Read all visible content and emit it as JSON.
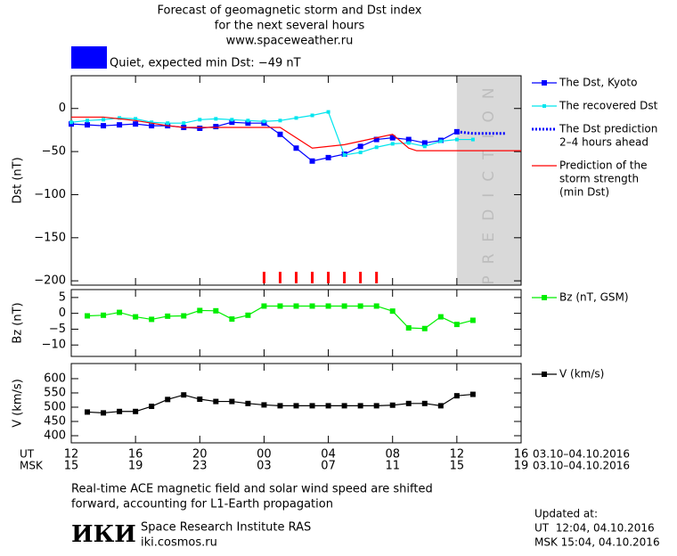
{
  "header": {
    "title_lines": [
      "Forecast of geomagnetic storm and Dst index",
      "for the next several hours",
      "www.spaceweather.ru"
    ],
    "status_color": "#0000ff",
    "status_text": "Quiet, expected min Dst: −49 nT"
  },
  "x_axis": {
    "xlim": [
      0,
      28
    ],
    "xticks": [
      {
        "value": 0,
        "label": "12"
      },
      {
        "value": 4,
        "label": "16"
      },
      {
        "value": 8,
        "label": "20"
      },
      {
        "value": 12,
        "label": "00"
      },
      {
        "value": 16,
        "label": "04"
      },
      {
        "value": 20,
        "label": "08"
      },
      {
        "value": 24,
        "label": "12"
      },
      {
        "value": 28,
        "label": "16"
      }
    ],
    "msk_tick_labels": [
      "15",
      "19",
      "23",
      "03",
      "07",
      "11",
      "15",
      "19"
    ],
    "ut_label": "UT",
    "msk_label": "MSK",
    "ut_dates": "03.10–04.10.2016",
    "msk_dates": "03.10–04.10.2016"
  },
  "chart_data": [
    {
      "type": "line",
      "ylabel": "Dst (nT)",
      "ylim": [
        -205,
        38
      ],
      "yticks": [
        0,
        {
          "value": -50,
          "label": "−50"
        },
        {
          "value": -100,
          "label": "−100"
        },
        {
          "value": -150,
          "label": "−150"
        },
        {
          "value": -200,
          "label": "−200"
        }
      ],
      "prediction_region": {
        "x": [
          24,
          28
        ],
        "color": "#d9d9d9",
        "label": "PREDICTION"
      },
      "storm_markers": {
        "color": "#ff0000",
        "x": [
          12,
          13,
          14,
          15,
          16,
          17,
          18,
          19
        ]
      },
      "series": [
        {
          "name": [
            "The Dst, Kyoto"
          ],
          "color": "#0000ff",
          "style": "line-markers",
          "x": [
            0,
            1,
            2,
            3,
            4,
            5,
            6,
            7,
            8,
            9,
            10,
            11,
            12,
            13,
            14,
            15,
            16,
            17,
            18,
            19,
            20,
            21,
            22,
            23,
            24
          ],
          "values": [
            -18,
            -19,
            -20,
            -19,
            -18,
            -20,
            -20,
            -22,
            -23,
            -21,
            -16,
            -17,
            -17,
            -30,
            -46,
            -61,
            -57,
            -53,
            -44,
            -36,
            -34,
            -36,
            -40,
            -37,
            -27
          ]
        },
        {
          "name": [
            "The recovered Dst"
          ],
          "color": "#00e5ee",
          "style": "line-small-markers",
          "x": [
            0,
            1,
            2,
            3,
            4,
            5,
            6,
            7,
            8,
            9,
            10,
            11,
            12,
            13,
            14,
            15,
            16,
            17,
            18,
            19,
            20,
            21,
            22,
            23,
            24,
            25
          ],
          "values": [
            -16,
            -14,
            -13,
            -11,
            -12,
            -16,
            -17,
            -17,
            -13,
            -12,
            -13,
            -14,
            -15,
            -14,
            -11,
            -8,
            -4,
            -54,
            -51,
            -45,
            -41,
            -40,
            -44,
            -38,
            -36,
            -36
          ]
        },
        {
          "name": [
            "The Dst prediction",
            "2–4 hours ahead"
          ],
          "color": "#0000ff",
          "style": "dotted",
          "x": [
            24,
            25,
            26,
            27
          ],
          "values": [
            -27,
            -29,
            -29,
            -29
          ]
        },
        {
          "name": [
            "Prediction of the",
            "storm strength",
            "(min Dst)"
          ],
          "color": "#ff0000",
          "style": "line",
          "x": [
            0,
            2,
            4,
            6,
            7,
            13,
            15,
            17,
            19,
            20,
            21,
            21.5,
            28
          ],
          "values": [
            -10,
            -10,
            -14,
            -20,
            -22,
            -22,
            -46,
            -42,
            -34,
            -30,
            -46,
            -49,
            -49
          ]
        }
      ]
    },
    {
      "type": "line",
      "ylabel": "Bz (nT)",
      "ylim": [
        -13.6,
        7.5
      ],
      "yticks": [
        5,
        0,
        {
          "value": -5,
          "label": "−5"
        },
        {
          "value": -10,
          "label": "−10"
        }
      ],
      "series": [
        {
          "name": [
            "Bz (nT, GSM)"
          ],
          "color": "#00ee00",
          "style": "line-markers",
          "x": [
            1,
            2,
            3,
            4,
            5,
            6,
            7,
            8,
            9,
            10,
            11,
            12,
            13,
            14,
            15,
            16,
            17,
            18,
            19,
            20,
            21,
            22,
            23,
            24,
            25
          ],
          "values": [
            -0.8,
            -0.6,
            0.3,
            -1.1,
            -1.9,
            -0.9,
            -0.8,
            0.9,
            0.8,
            -1.8,
            -0.6,
            2.3,
            2.3,
            2.3,
            2.3,
            2.3,
            2.3,
            2.3,
            2.3,
            0.7,
            -4.6,
            -4.8,
            -1.1,
            -3.5,
            -2.2
          ]
        }
      ]
    },
    {
      "type": "line",
      "ylabel": "V (km/s)",
      "ylim": [
        375,
        653
      ],
      "yticks": [
        600,
        550,
        500,
        450,
        400
      ],
      "series": [
        {
          "name": [
            "V (km/s)"
          ],
          "color": "#000000",
          "style": "line-markers",
          "x": [
            1,
            2,
            3,
            4,
            5,
            6,
            7,
            8,
            9,
            10,
            11,
            12,
            13,
            14,
            15,
            16,
            17,
            18,
            19,
            20,
            21,
            22,
            23,
            24,
            25
          ],
          "values": [
            483,
            480,
            485,
            485,
            503,
            527,
            543,
            528,
            520,
            520,
            513,
            508,
            505,
            505,
            505,
            505,
            505,
            505,
            505,
            507,
            513,
            513,
            505,
            540,
            545
          ]
        }
      ]
    }
  ],
  "footer": {
    "note_lines": [
      "Real-time ACE magnetic field and solar wind speed are shifted",
      "forward, accounting for L1-Earth propagation"
    ],
    "logo": "ИКИ",
    "institute": "Space Research Institute RAS",
    "site": "iki.cosmos.ru",
    "updated_label": "Updated at:",
    "updated_ut": "UT  12:04, 04.10.2016",
    "updated_msk": "MSK 15:04, 04.10.2016"
  }
}
